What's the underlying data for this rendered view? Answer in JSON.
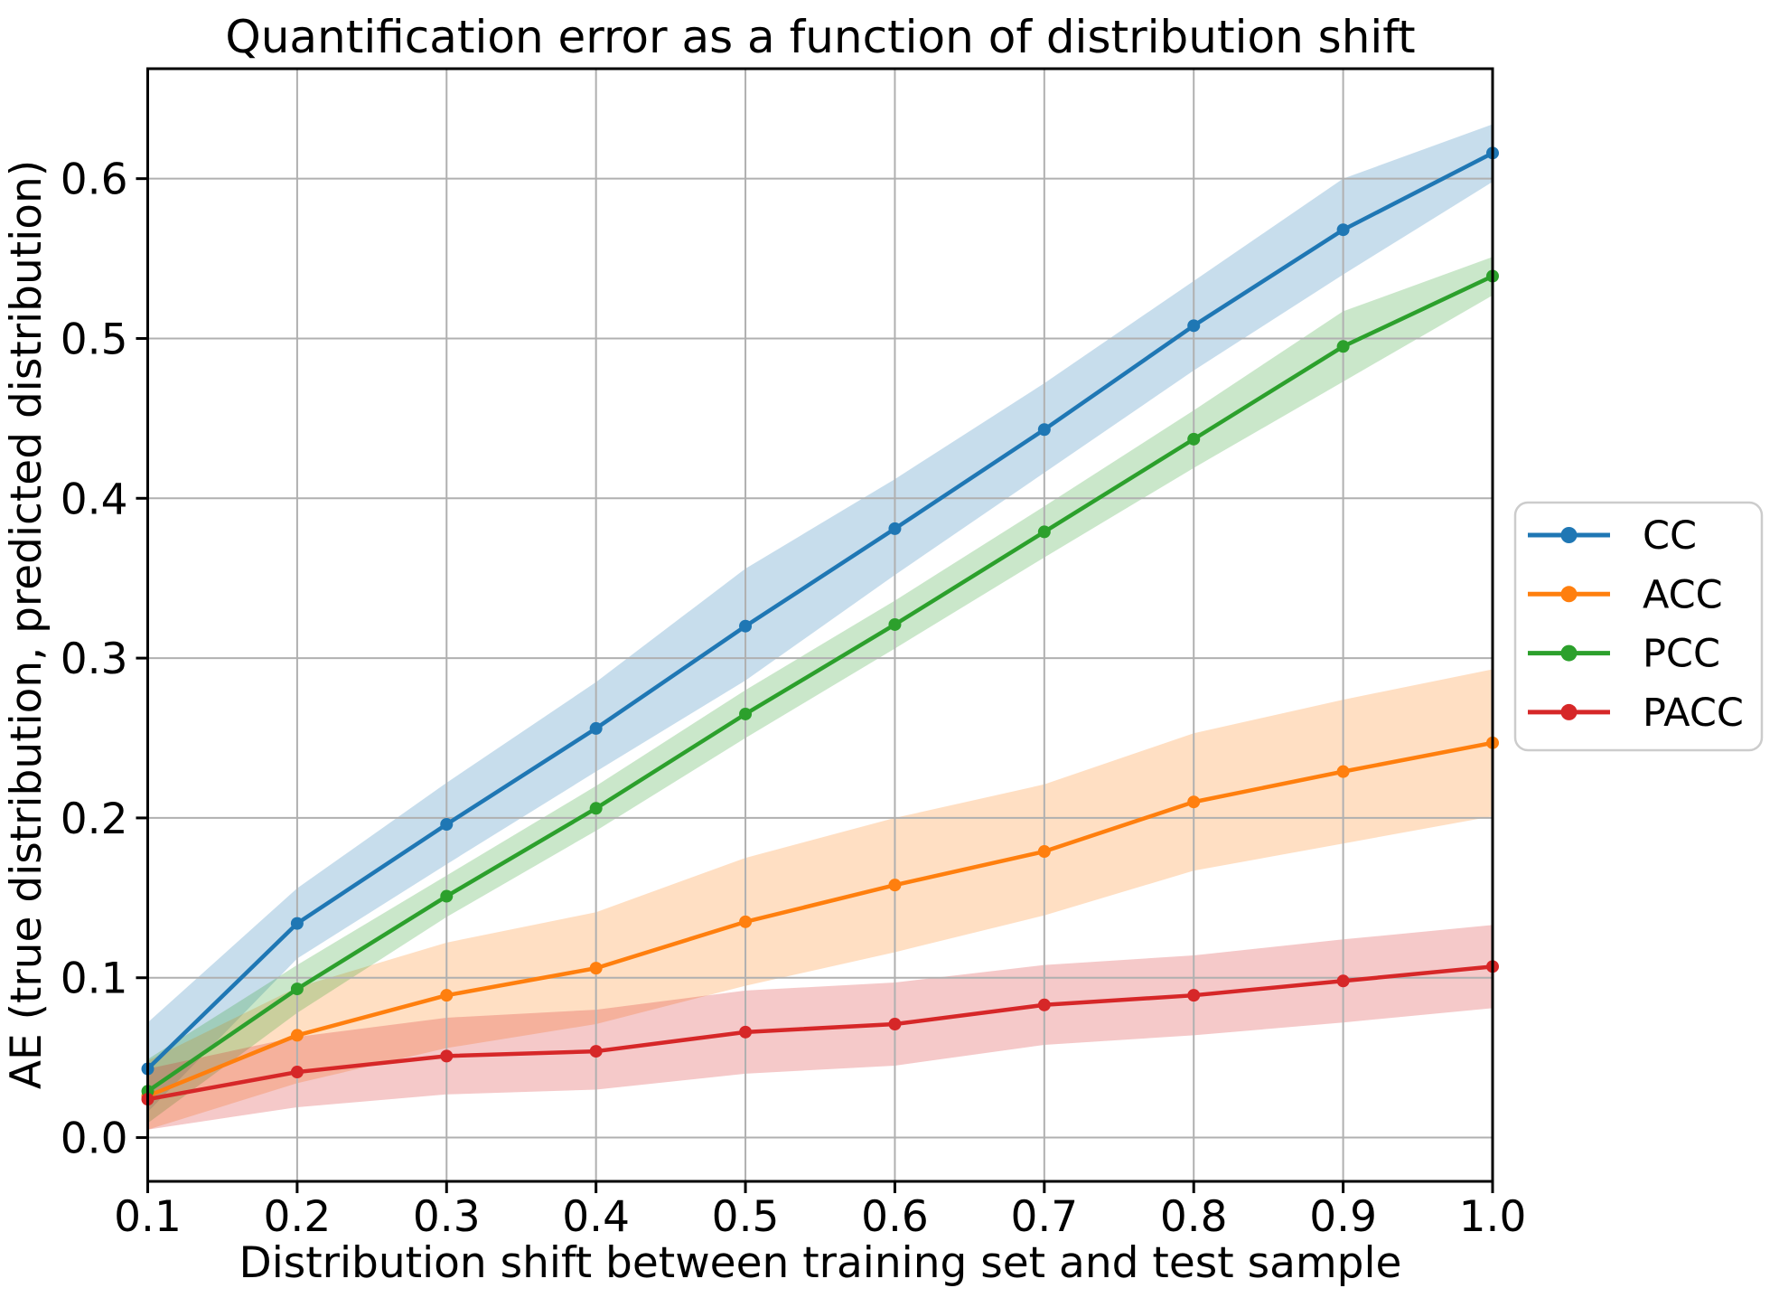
{
  "figure": {
    "background": "#ffffff"
  },
  "chart_data": {
    "type": "line",
    "title": "Quantification error as a function of distribution shift",
    "xlabel": "Distribution shift between training set and test sample",
    "ylabel": "AE (true distribution, predicted distribution)",
    "x": [
      0.1,
      0.2,
      0.3,
      0.4,
      0.5,
      0.6,
      0.7,
      0.8,
      0.9,
      1.0
    ],
    "x_tick_labels": [
      "0.1",
      "0.2",
      "0.3",
      "0.4",
      "0.5",
      "0.6",
      "0.7",
      "0.8",
      "0.9",
      "1.0"
    ],
    "y_ticks": [
      0.0,
      0.1,
      0.2,
      0.3,
      0.4,
      0.5,
      0.6
    ],
    "y_tick_labels": [
      "0.0",
      "0.1",
      "0.2",
      "0.3",
      "0.4",
      "0.5",
      "0.6"
    ],
    "xlim": [
      0.1,
      1.0
    ],
    "ylim": [
      -0.0274,
      0.6688
    ],
    "grid": true,
    "grid_color": "#b0b0b0",
    "spine_color": "#000000",
    "band_opacity": 0.25,
    "legend_position": "center-right-outside",
    "legend_border_color": "#cccccc",
    "series": [
      {
        "name": "CC",
        "color": "#1f77b4",
        "values": [
          0.043,
          0.134,
          0.196,
          0.256,
          0.32,
          0.381,
          0.443,
          0.508,
          0.568,
          0.616
        ],
        "band_upper": [
          0.072,
          0.156,
          0.222,
          0.285,
          0.356,
          0.412,
          0.472,
          0.536,
          0.6,
          0.634
        ],
        "band_lower": [
          0.016,
          0.112,
          0.171,
          0.229,
          0.286,
          0.352,
          0.416,
          0.48,
          0.54,
          0.598
        ]
      },
      {
        "name": "ACC",
        "color": "#ff7f0e",
        "values": [
          0.026,
          0.064,
          0.089,
          0.106,
          0.135,
          0.158,
          0.179,
          0.21,
          0.229,
          0.247
        ],
        "band_upper": [
          0.048,
          0.094,
          0.122,
          0.141,
          0.175,
          0.2,
          0.221,
          0.253,
          0.274,
          0.293
        ],
        "band_lower": [
          0.005,
          0.034,
          0.056,
          0.071,
          0.095,
          0.116,
          0.139,
          0.167,
          0.184,
          0.201
        ]
      },
      {
        "name": "PCC",
        "color": "#2ca02c",
        "values": [
          0.029,
          0.093,
          0.151,
          0.206,
          0.265,
          0.321,
          0.379,
          0.437,
          0.495,
          0.539
        ],
        "band_upper": [
          0.049,
          0.108,
          0.164,
          0.22,
          0.28,
          0.336,
          0.395,
          0.455,
          0.517,
          0.551
        ],
        "band_lower": [
          0.009,
          0.078,
          0.138,
          0.192,
          0.25,
          0.306,
          0.363,
          0.419,
          0.473,
          0.527
        ]
      },
      {
        "name": "PACC",
        "color": "#d62728",
        "values": [
          0.024,
          0.041,
          0.051,
          0.054,
          0.066,
          0.071,
          0.083,
          0.089,
          0.098,
          0.107
        ],
        "band_upper": [
          0.043,
          0.063,
          0.075,
          0.08,
          0.092,
          0.097,
          0.108,
          0.114,
          0.124,
          0.133
        ],
        "band_lower": [
          0.005,
          0.019,
          0.027,
          0.03,
          0.04,
          0.045,
          0.058,
          0.064,
          0.072,
          0.081
        ]
      }
    ]
  }
}
